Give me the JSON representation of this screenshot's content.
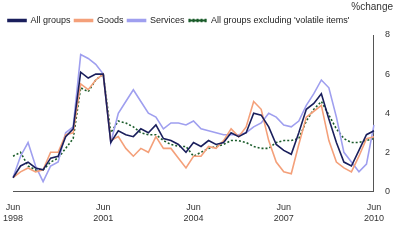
{
  "chart_data": {
    "type": "line",
    "y_label": "%change",
    "categories": [
      "Jun 1998",
      null,
      null,
      null,
      null,
      null,
      null,
      null,
      null,
      null,
      null,
      null,
      "Jun 2001",
      null,
      null,
      null,
      null,
      null,
      null,
      null,
      null,
      null,
      null,
      null,
      "Jun 2004",
      null,
      null,
      null,
      null,
      null,
      null,
      null,
      null,
      null,
      null,
      null,
      "Jun 2007",
      null,
      null,
      null,
      null,
      null,
      null,
      null,
      null,
      null,
      null,
      null,
      "Jun 2010"
    ],
    "series": [
      {
        "name": "All groups",
        "color": "#1a1f5c",
        "line_style": "solid",
        "values": [
          0.7,
          1.3,
          1.5,
          1.2,
          1.1,
          1.7,
          1.8,
          2.8,
          3.2,
          6.1,
          5.8,
          6.0,
          6.0,
          2.5,
          3.1,
          2.9,
          2.8,
          3.2,
          3.0,
          3.4,
          2.7,
          2.6,
          2.4,
          2.0,
          2.5,
          2.3,
          2.6,
          2.4,
          2.5,
          3.0,
          2.8,
          3.0,
          4.0,
          3.9,
          3.3,
          2.4,
          2.1,
          1.9,
          3.0,
          4.2,
          4.5,
          5.0,
          3.7,
          2.5,
          1.5,
          1.3,
          2.1,
          2.9,
          3.1
        ]
      },
      {
        "name": "Goods",
        "color": "#f4a07a",
        "line_style": "solid",
        "values": [
          0.7,
          1.0,
          1.2,
          1.0,
          1.1,
          2.0,
          2.0,
          2.9,
          3.0,
          5.5,
          5.2,
          5.7,
          6.0,
          2.6,
          2.8,
          2.2,
          1.8,
          2.2,
          2.0,
          2.8,
          2.2,
          2.2,
          1.7,
          1.2,
          1.8,
          1.8,
          2.3,
          2.2,
          2.6,
          3.2,
          2.8,
          3.3,
          4.6,
          4.2,
          2.6,
          1.5,
          1.0,
          0.9,
          2.4,
          3.8,
          4.1,
          4.4,
          2.6,
          1.5,
          1.2,
          1.0,
          1.8,
          2.7,
          2.8
        ]
      },
      {
        "name": "Services",
        "color": "#9f9fef",
        "line_style": "solid",
        "values": [
          0.7,
          1.8,
          2.5,
          1.3,
          0.5,
          1.3,
          1.5,
          3.0,
          3.3,
          7.0,
          6.8,
          6.5,
          6.0,
          2.5,
          4.0,
          4.6,
          5.2,
          4.6,
          4.0,
          3.8,
          3.2,
          3.5,
          3.5,
          3.4,
          3.6,
          3.2,
          3.1,
          3.0,
          2.9,
          2.9,
          2.9,
          3.0,
          3.3,
          3.5,
          4.0,
          3.8,
          3.4,
          3.3,
          3.6,
          4.4,
          5.0,
          5.7,
          5.3,
          3.8,
          2.0,
          1.5,
          1.0,
          1.4,
          3.4
        ]
      },
      {
        "name": "All groups excluding 'volatile items'",
        "color": "#1a5c2a",
        "line_style": "dotted",
        "values": [
          1.8,
          2.0,
          1.3,
          1.1,
          1.1,
          1.5,
          1.7,
          2.2,
          2.7,
          5.3,
          5.1,
          5.7,
          6.0,
          3.0,
          3.6,
          3.5,
          3.3,
          3.0,
          2.9,
          2.9,
          2.6,
          2.4,
          2.3,
          2.3,
          1.8,
          2.0,
          2.2,
          2.3,
          2.4,
          2.6,
          2.6,
          2.5,
          2.3,
          2.2,
          2.2,
          2.5,
          2.6,
          2.6,
          2.7,
          3.6,
          4.2,
          4.6,
          3.9,
          3.2,
          2.7,
          2.5,
          2.5,
          2.6,
          2.7
        ]
      }
    ],
    "ylim": [
      0,
      8
    ],
    "yticks": [
      0,
      2,
      4,
      6,
      8
    ],
    "grid": false,
    "legend": "upper left"
  }
}
